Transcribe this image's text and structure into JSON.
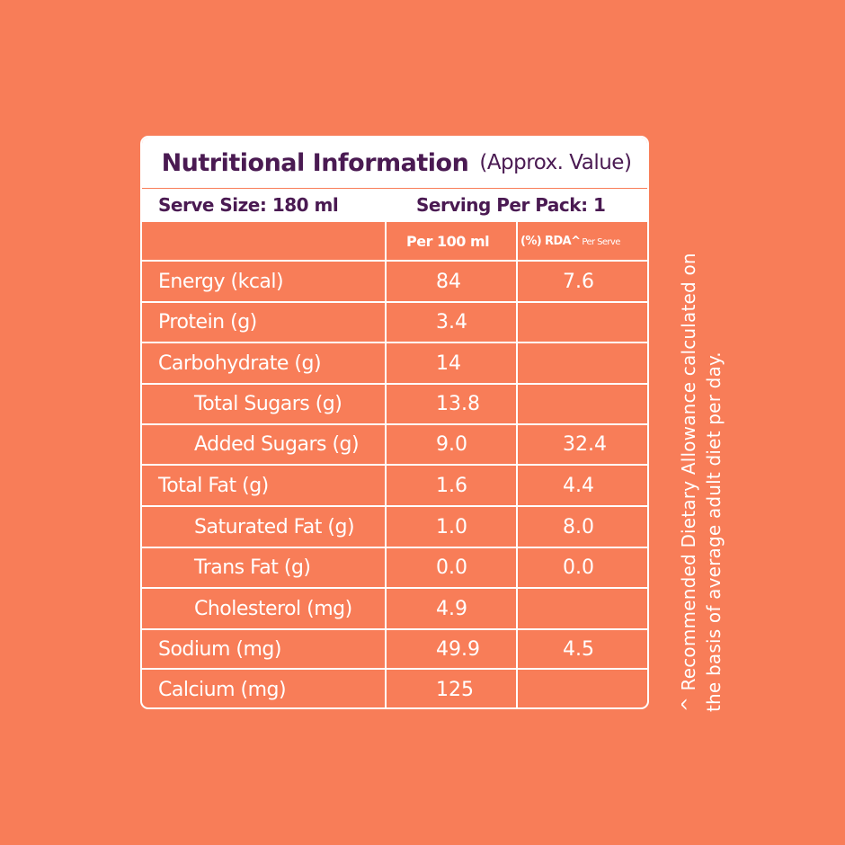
{
  "label": {
    "title": "Nutritional Information",
    "title_note": "(Approx. Value)",
    "serve_size": "Serve Size: 180 ml",
    "servings_per_pack": "Serving Per Pack: 1",
    "col_per100": "Per 100 ml",
    "col_rda": "(%) RDA^",
    "col_rda_note": "Per Serve",
    "rows": [
      {
        "name": "Energy (kcal)",
        "per100": "84",
        "rda": "7.6"
      },
      {
        "name": "Protein (g)",
        "per100": "3.4",
        "rda": ""
      },
      {
        "name": "Carbohydrate (g)",
        "per100": "14",
        "rda": ""
      },
      {
        "name": "Total Sugars (g)",
        "per100": "13.8",
        "rda": ""
      },
      {
        "name": "Added Sugars (g)",
        "per100": "9.0",
        "rda": "32.4"
      },
      {
        "name": "Total Fat (g)",
        "per100": "1.6",
        "rda": "4.4"
      },
      {
        "name": "Saturated Fat (g)",
        "per100": "1.0",
        "rda": "8.0"
      },
      {
        "name": "Trans Fat (g)",
        "per100": "0.0",
        "rda": "0.0"
      },
      {
        "name": "Cholesterol (mg)",
        "per100": "4.9",
        "rda": ""
      },
      {
        "name": "Sodium (mg)",
        "per100": "49.9",
        "rda": "4.5"
      },
      {
        "name": "Calcium (mg)",
        "per100": "125",
        "rda": ""
      }
    ],
    "footnote_line1": "^ Recommended Dietary Allowance calculated on",
    "footnote_line2": "the basis of average adult diet per day."
  },
  "colors": {
    "background": "#f87d58",
    "title_text": "#4a1a52",
    "lines": "#ffffff"
  }
}
